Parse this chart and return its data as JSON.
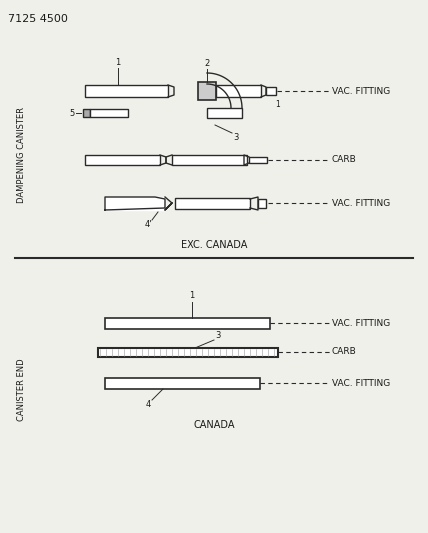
{
  "title_code": "7125 4500",
  "bg_color": "#f0f0eb",
  "line_color": "#2a2a2a",
  "text_color": "#1a1a1a",
  "section_label_top": "DAMPENING CANISTER",
  "section_label_bottom": "CANISTER END",
  "exc_canada_label": "EXC. CANADA",
  "canada_label": "CANADA",
  "figsize": [
    4.28,
    5.33
  ],
  "dpi": 100
}
